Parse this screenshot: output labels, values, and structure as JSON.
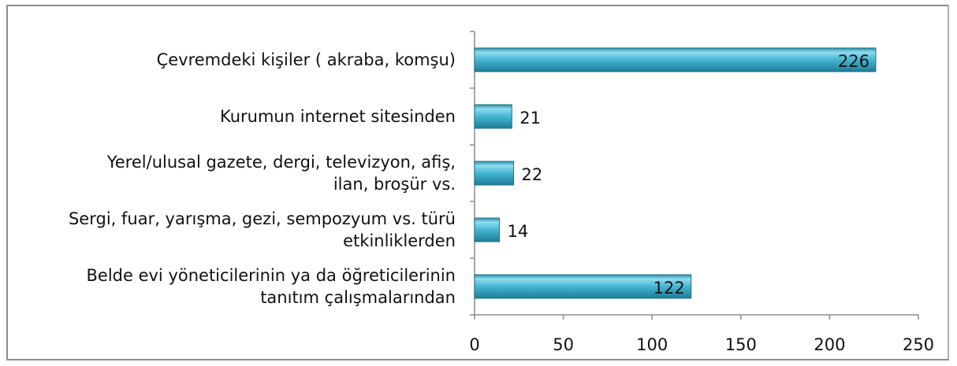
{
  "chart_data": {
    "type": "bar",
    "orientation": "horizontal",
    "categories": [
      "Çevremdeki kişiler ( akraba, komşu)",
      "Kurumun internet sitesinden",
      "Yerel/ulusal gazete, dergi, televizyon, afiş,\nilan, broşür vs.",
      "Sergi, fuar, yarışma, gezi, sempozyum vs. türü\netkinliklerden",
      "Belde evi yöneticilerinin ya da öğreticilerinin\ntanıtım çalışmalarından"
    ],
    "values": [
      226,
      21,
      22,
      14,
      122
    ],
    "color": "#45b5d2",
    "xlim": [
      0,
      250
    ],
    "xticks": [
      0,
      50,
      100,
      150,
      200,
      250
    ]
  }
}
